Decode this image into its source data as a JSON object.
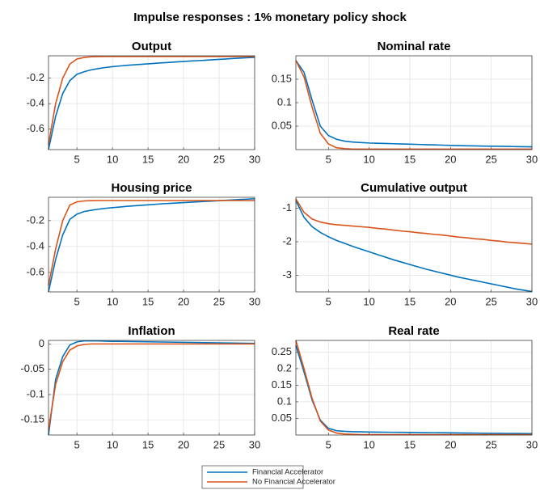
{
  "title": "Impulse responses : 1% monetary policy shock",
  "chart_data": [
    {
      "type": "line",
      "title": "Output",
      "grid": true,
      "x": [
        1,
        2,
        3,
        4,
        5,
        6,
        7,
        8,
        9,
        10,
        11,
        12,
        13,
        14,
        15,
        16,
        17,
        18,
        19,
        20,
        21,
        22,
        23,
        24,
        25,
        26,
        27,
        28,
        29,
        30
      ],
      "xlim": [
        1,
        30
      ],
      "xticks": [
        5,
        10,
        15,
        20,
        25,
        30
      ],
      "ylim": [
        -0.76,
        -0.025
      ],
      "yticks": [
        -0.6,
        -0.4,
        -0.2
      ],
      "series": [
        {
          "name": "Financial Accelerator",
          "color": "#0072BD",
          "values": [
            -0.76,
            -0.5,
            -0.32,
            -0.22,
            -0.17,
            -0.15,
            -0.135,
            -0.125,
            -0.117,
            -0.11,
            -0.105,
            -0.1,
            -0.096,
            -0.092,
            -0.088,
            -0.084,
            -0.08,
            -0.077,
            -0.073,
            -0.07,
            -0.066,
            -0.063,
            -0.06,
            -0.056,
            -0.053,
            -0.05,
            -0.046,
            -0.043,
            -0.04,
            -0.037
          ]
        },
        {
          "name": "No Financial Accelerator",
          "color": "#D95319",
          "values": [
            -0.72,
            -0.4,
            -0.2,
            -0.09,
            -0.05,
            -0.038,
            -0.033,
            -0.031,
            -0.03,
            -0.03,
            -0.03,
            -0.03,
            -0.03,
            -0.03,
            -0.03,
            -0.03,
            -0.03,
            -0.03,
            -0.03,
            -0.03,
            -0.03,
            -0.03,
            -0.03,
            -0.03,
            -0.03,
            -0.03,
            -0.03,
            -0.03,
            -0.03,
            -0.03
          ]
        }
      ]
    },
    {
      "type": "line",
      "title": "Nominal rate",
      "grid": true,
      "x": [
        1,
        2,
        3,
        4,
        5,
        6,
        7,
        8,
        9,
        10,
        11,
        12,
        13,
        14,
        15,
        16,
        17,
        18,
        19,
        20,
        21,
        22,
        23,
        24,
        25,
        26,
        27,
        28,
        29,
        30
      ],
      "xlim": [
        1,
        30
      ],
      "xticks": [
        5,
        10,
        15,
        20,
        25,
        30
      ],
      "ylim": [
        0,
        0.2
      ],
      "yticks": [
        0.05,
        0.1,
        0.15
      ],
      "series": [
        {
          "color": "#0072BD",
          "values": [
            0.19,
            0.165,
            0.105,
            0.05,
            0.03,
            0.022,
            0.018,
            0.016,
            0.015,
            0.014,
            0.0135,
            0.013,
            0.0125,
            0.012,
            0.0115,
            0.011,
            0.0105,
            0.01,
            0.0095,
            0.009,
            0.0085,
            0.008,
            0.0078,
            0.0075,
            0.0072,
            0.007,
            0.0067,
            0.0064,
            0.0062,
            0.006
          ]
        },
        {
          "color": "#D95319",
          "values": [
            0.19,
            0.155,
            0.09,
            0.035,
            0.012,
            0.004,
            0.002,
            0.001,
            0.001,
            0.001,
            0.001,
            0.001,
            0.001,
            0.001,
            0.001,
            0.001,
            0.001,
            0.001,
            0.001,
            0.001,
            0.001,
            0.001,
            0.001,
            0.001,
            0.001,
            0.001,
            0.001,
            0.001,
            0.001,
            0.001
          ]
        }
      ]
    },
    {
      "type": "line",
      "title": "Housing price",
      "grid": true,
      "x": [
        1,
        2,
        3,
        4,
        5,
        6,
        7,
        8,
        9,
        10,
        11,
        12,
        13,
        14,
        15,
        16,
        17,
        18,
        19,
        20,
        21,
        22,
        23,
        24,
        25,
        26,
        27,
        28,
        29,
        30
      ],
      "xlim": [
        1,
        30
      ],
      "xticks": [
        5,
        10,
        15,
        20,
        25,
        30
      ],
      "ylim": [
        -0.75,
        -0.02
      ],
      "yticks": [
        -0.6,
        -0.4,
        -0.2
      ],
      "series": [
        {
          "color": "#0072BD",
          "values": [
            -0.75,
            -0.5,
            -0.31,
            -0.19,
            -0.15,
            -0.13,
            -0.12,
            -0.112,
            -0.105,
            -0.1,
            -0.095,
            -0.09,
            -0.086,
            -0.082,
            -0.078,
            -0.074,
            -0.07,
            -0.067,
            -0.064,
            -0.061,
            -0.058,
            -0.055,
            -0.052,
            -0.049,
            -0.046,
            -0.043,
            -0.04,
            -0.037,
            -0.034,
            -0.031
          ]
        },
        {
          "color": "#D95319",
          "values": [
            -0.7,
            -0.42,
            -0.2,
            -0.08,
            -0.055,
            -0.048,
            -0.046,
            -0.045,
            -0.045,
            -0.045,
            -0.045,
            -0.045,
            -0.045,
            -0.045,
            -0.045,
            -0.045,
            -0.045,
            -0.045,
            -0.045,
            -0.045,
            -0.045,
            -0.045,
            -0.045,
            -0.045,
            -0.045,
            -0.045,
            -0.045,
            -0.045,
            -0.045,
            -0.045
          ]
        }
      ]
    },
    {
      "type": "line",
      "title": "Cumulative output",
      "grid": true,
      "x": [
        1,
        2,
        3,
        4,
        5,
        6,
        7,
        8,
        9,
        10,
        11,
        12,
        13,
        14,
        15,
        16,
        17,
        18,
        19,
        20,
        21,
        22,
        23,
        24,
        25,
        26,
        27,
        28,
        29,
        30
      ],
      "xlim": [
        1,
        30
      ],
      "xticks": [
        5,
        10,
        15,
        20,
        25,
        30
      ],
      "ylim": [
        -3.5,
        -0.67
      ],
      "yticks": [
        -3,
        -2,
        -1
      ],
      "series": [
        {
          "color": "#0072BD",
          "values": [
            -0.77,
            -1.27,
            -1.55,
            -1.72,
            -1.85,
            -1.96,
            -2.05,
            -2.14,
            -2.22,
            -2.3,
            -2.38,
            -2.46,
            -2.54,
            -2.61,
            -2.68,
            -2.75,
            -2.82,
            -2.88,
            -2.94,
            -3.0,
            -3.06,
            -3.11,
            -3.16,
            -3.21,
            -3.26,
            -3.31,
            -3.36,
            -3.41,
            -3.45,
            -3.49
          ]
        },
        {
          "color": "#D95319",
          "values": [
            -0.72,
            -1.12,
            -1.32,
            -1.41,
            -1.46,
            -1.49,
            -1.51,
            -1.53,
            -1.55,
            -1.57,
            -1.6,
            -1.62,
            -1.65,
            -1.68,
            -1.7,
            -1.73,
            -1.75,
            -1.78,
            -1.8,
            -1.83,
            -1.86,
            -1.88,
            -1.91,
            -1.93,
            -1.96,
            -1.98,
            -2.01,
            -2.03,
            -2.05,
            -2.07
          ]
        }
      ]
    },
    {
      "type": "line",
      "title": "Inflation",
      "grid": true,
      "x": [
        1,
        2,
        3,
        4,
        5,
        6,
        7,
        8,
        9,
        10,
        11,
        12,
        13,
        14,
        15,
        16,
        17,
        18,
        19,
        20,
        21,
        22,
        23,
        24,
        25,
        26,
        27,
        28,
        29,
        30
      ],
      "xlim": [
        1,
        30
      ],
      "xticks": [
        5,
        10,
        15,
        20,
        25,
        30
      ],
      "ylim": [
        -0.18,
        0.007
      ],
      "yticks": [
        -0.15,
        -0.1,
        -0.05,
        0
      ],
      "series": [
        {
          "color": "#0072BD",
          "values": [
            -0.18,
            -0.07,
            -0.025,
            -0.002,
            0.004,
            0.006,
            0.006,
            0.006,
            0.0055,
            0.005,
            0.005,
            0.0048,
            0.0046,
            0.0044,
            0.0042,
            0.004,
            0.0038,
            0.0036,
            0.0034,
            0.0032,
            0.003,
            0.0028,
            0.0026,
            0.0024,
            0.0022,
            0.002,
            0.0018,
            0.0016,
            0.0014,
            0.0012
          ]
        },
        {
          "color": "#D95319",
          "values": [
            -0.17,
            -0.08,
            -0.035,
            -0.012,
            -0.004,
            -0.001,
            0,
            0,
            0,
            0,
            0,
            0,
            0,
            0,
            0,
            0,
            0,
            0,
            0,
            0,
            0,
            0,
            0,
            0,
            0,
            0,
            0,
            0,
            0,
            0
          ]
        }
      ]
    },
    {
      "type": "line",
      "title": "Real rate",
      "grid": true,
      "x": [
        1,
        2,
        3,
        4,
        5,
        6,
        7,
        8,
        9,
        10,
        11,
        12,
        13,
        14,
        15,
        16,
        17,
        18,
        19,
        20,
        21,
        22,
        23,
        24,
        25,
        26,
        27,
        28,
        29,
        30
      ],
      "xlim": [
        1,
        30
      ],
      "xticks": [
        5,
        10,
        15,
        20,
        25,
        30
      ],
      "ylim": [
        0,
        0.285
      ],
      "yticks": [
        0.05,
        0.1,
        0.15,
        0.2,
        0.25
      ],
      "series": [
        {
          "color": "#0072BD",
          "values": [
            0.27,
            0.19,
            0.105,
            0.045,
            0.02,
            0.013,
            0.011,
            0.01,
            0.0095,
            0.009,
            0.0088,
            0.0085,
            0.0082,
            0.008,
            0.0078,
            0.0075,
            0.0072,
            0.007,
            0.0068,
            0.0065,
            0.0062,
            0.006,
            0.0058,
            0.0055,
            0.0052,
            0.005,
            0.0048,
            0.0046,
            0.0044,
            0.0042
          ]
        },
        {
          "color": "#D95319",
          "values": [
            0.285,
            0.2,
            0.11,
            0.042,
            0.015,
            0.006,
            0.003,
            0.002,
            0.001,
            0.001,
            0.001,
            0.001,
            0.001,
            0.001,
            0.001,
            0.001,
            0.001,
            0.001,
            0.001,
            0.001,
            0.001,
            0.001,
            0.001,
            0.001,
            0.001,
            0.001,
            0.001,
            0.001,
            0.001,
            0.001
          ]
        }
      ]
    }
  ]
}
